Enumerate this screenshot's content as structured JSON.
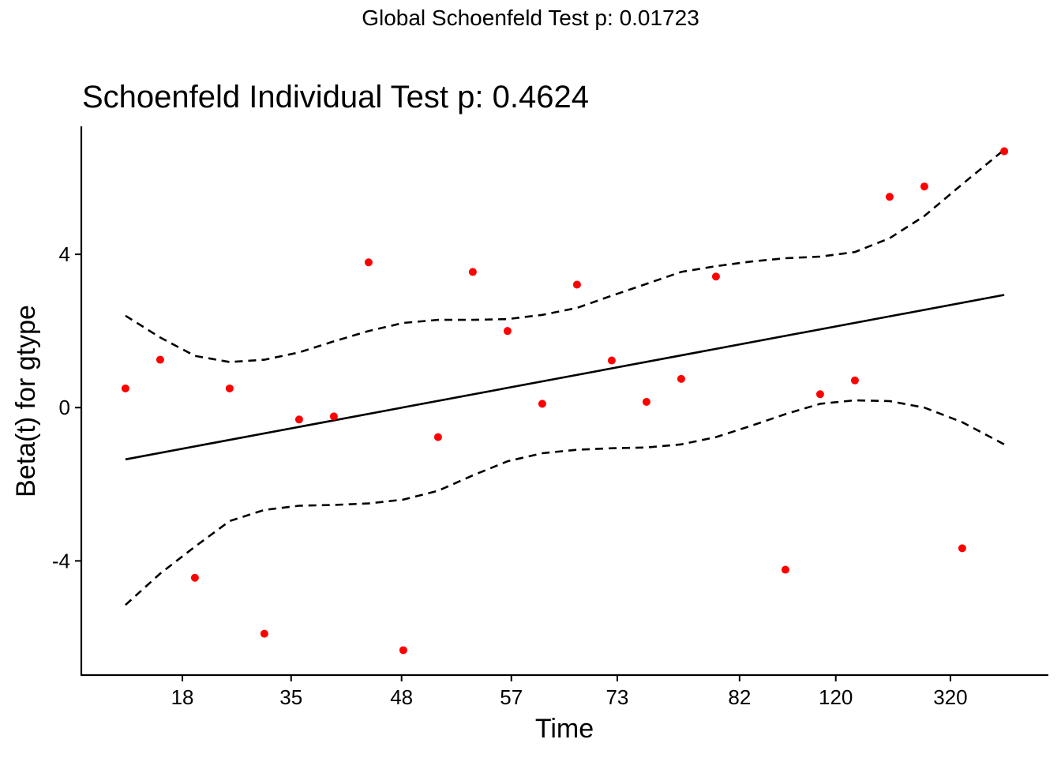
{
  "chart_data": {
    "type": "scatter",
    "suptitle": "Global Schoenfeld Test p: 0.01723",
    "title": "Schoenfeld Individual Test p: 0.4624",
    "x_label": "Time",
    "y_label": "Beta(t) for gtype",
    "xlim": [
      -0.27,
      27.57
    ],
    "ylim": [
      -6.98,
      7.34
    ],
    "xticks": [
      {
        "value": 2.64,
        "label": "18"
      },
      {
        "value": 5.77,
        "label": "35"
      },
      {
        "value": 8.95,
        "label": "48"
      },
      {
        "value": 12.11,
        "label": "57"
      },
      {
        "value": 15.16,
        "label": "73"
      },
      {
        "value": 18.68,
        "label": "82"
      },
      {
        "value": 21.45,
        "label": "120"
      },
      {
        "value": 24.75,
        "label": "320"
      }
    ],
    "yticks": [
      -4,
      0,
      4
    ],
    "grid": false,
    "series": [
      {
        "type": "scatter",
        "color": "#ff0000",
        "x": [
          1,
          2,
          3,
          4,
          5,
          6,
          7,
          8,
          9,
          10,
          11,
          12,
          13,
          14,
          15,
          16,
          17,
          18,
          20,
          21,
          22,
          23,
          24,
          25.09,
          26.3
        ],
        "values": [
          0.5,
          1.25,
          -4.44,
          0.5,
          -5.9,
          -0.31,
          -0.23,
          3.79,
          -6.33,
          -0.77,
          3.54,
          2.0,
          0.1,
          3.21,
          1.23,
          0.15,
          0.75,
          3.42,
          -4.23,
          0.35,
          0.71,
          5.5,
          5.77,
          -3.67,
          6.69
        ]
      },
      {
        "type": "line",
        "color": "#000000",
        "dash": false,
        "x": [
          1,
          26.3
        ],
        "values": [
          -1.35,
          2.94
        ]
      },
      {
        "type": "line",
        "color": "#000000",
        "dash": true,
        "x": [
          1,
          2,
          3,
          4,
          5,
          6,
          7,
          8,
          9,
          10,
          11,
          12,
          13,
          14,
          15,
          16,
          17,
          18,
          19,
          20,
          21,
          22,
          23,
          24,
          25.09,
          26.3
        ],
        "values": [
          2.4,
          1.83,
          1.35,
          1.19,
          1.25,
          1.44,
          1.73,
          2.0,
          2.21,
          2.29,
          2.29,
          2.31,
          2.42,
          2.6,
          2.92,
          3.23,
          3.54,
          3.69,
          3.81,
          3.9,
          3.94,
          4.06,
          4.42,
          5.0,
          5.83,
          6.73
        ]
      },
      {
        "type": "line",
        "color": "#000000",
        "dash": true,
        "x": [
          1,
          2,
          3,
          4,
          5,
          6,
          7,
          8,
          9,
          10,
          11,
          12,
          13,
          14,
          15,
          16,
          17,
          18,
          19,
          20,
          21,
          22,
          23,
          24,
          25.09,
          26.3
        ],
        "values": [
          -5.15,
          -4.33,
          -3.63,
          -2.96,
          -2.67,
          -2.56,
          -2.54,
          -2.5,
          -2.4,
          -2.17,
          -1.77,
          -1.4,
          -1.19,
          -1.1,
          -1.06,
          -1.04,
          -0.96,
          -0.77,
          -0.48,
          -0.17,
          0.1,
          0.19,
          0.17,
          0.0,
          -0.38,
          -0.96
        ]
      }
    ]
  }
}
